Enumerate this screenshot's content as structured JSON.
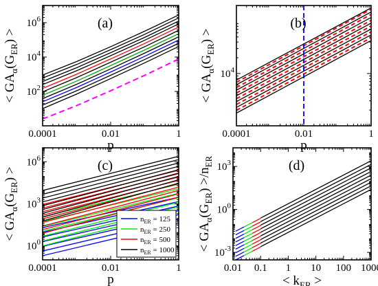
{
  "chart_data": [
    {
      "panel": "a",
      "type": "line",
      "panel_label": "(a)",
      "xlabel": "p",
      "ylabel": "< GA_α(G_ER) >",
      "xscale": "log",
      "yscale": "log",
      "xlim": [
        0.0001,
        1
      ],
      "ylim": [
        1,
        10000000
      ],
      "xticks": [
        {
          "v": 0.0001,
          "label": "0.0001"
        },
        {
          "v": 0.01,
          "label": "0.01"
        },
        {
          "v": 1,
          "label": "1"
        }
      ],
      "yticks": [
        {
          "v": 100,
          "label": "10^2"
        },
        {
          "v": 10000,
          "label": "10^4"
        },
        {
          "v": 1000000,
          "label": "10^6"
        }
      ],
      "series": [
        {
          "color": "#000000",
          "points": [
            [
              0.0001,
              900
            ],
            [
              0.001,
              5500
            ],
            [
              0.01,
              40000
            ],
            [
              0.1,
              320000
            ],
            [
              1,
              2800000
            ]
          ]
        },
        {
          "color": "#000000",
          "points": [
            [
              0.0001,
              600
            ],
            [
              0.001,
              3700
            ],
            [
              0.01,
              27000
            ],
            [
              0.1,
              210000
            ],
            [
              1,
              1900000
            ]
          ]
        },
        {
          "color": "#000000",
          "points": [
            [
              0.0001,
              380
            ],
            [
              0.001,
              2400
            ],
            [
              0.01,
              18000
            ],
            [
              0.1,
              140000
            ],
            [
              1,
              1250000
            ]
          ]
        },
        {
          "color": "#000000",
          "points": [
            [
              0.0001,
              250
            ],
            [
              0.001,
              1600
            ],
            [
              0.01,
              12000
            ],
            [
              0.1,
              95000
            ],
            [
              1,
              850000
            ]
          ]
        },
        {
          "color": "#ff0000",
          "points": [
            [
              0.0001,
              150
            ],
            [
              0.001,
              1000
            ],
            [
              0.01,
              7800
            ],
            [
              0.1,
              62000
            ],
            [
              1,
              560000
            ]
          ]
        },
        {
          "color": "#000000",
          "points": [
            [
              0.0001,
              95
            ],
            [
              0.001,
              640
            ],
            [
              0.01,
              5000
            ],
            [
              0.1,
              40000
            ],
            [
              1,
              360000
            ]
          ]
        },
        {
          "color": "#00aa00",
          "points": [
            [
              0.0001,
              60
            ],
            [
              0.001,
              400
            ],
            [
              0.01,
              3200
            ],
            [
              0.1,
              26000
            ],
            [
              1,
              230000
            ]
          ]
        },
        {
          "color": "#000000",
          "points": [
            [
              0.0001,
              38
            ],
            [
              0.001,
              260
            ],
            [
              0.01,
              2050
            ],
            [
              0.1,
              17000
            ],
            [
              1,
              150000
            ]
          ]
        },
        {
          "color": "#0000ff",
          "points": [
            [
              0.0001,
              25
            ],
            [
              0.001,
              170
            ],
            [
              0.01,
              1350
            ],
            [
              0.1,
              11000
            ],
            [
              1,
              98000
            ]
          ]
        },
        {
          "color": "#000000",
          "points": [
            [
              0.0001,
              16
            ],
            [
              0.001,
              110
            ],
            [
              0.01,
              870
            ],
            [
              0.1,
              7200
            ],
            [
              1,
              64000
            ]
          ]
        },
        {
          "color": "#000000",
          "points": [
            [
              0.0001,
              10
            ],
            [
              0.001,
              70
            ],
            [
              0.01,
              560
            ],
            [
              0.1,
              4600
            ],
            [
              1,
              41000
            ]
          ]
        },
        {
          "color": "#ff00ff",
          "dash": "8,5",
          "points": [
            [
              0.0001,
              2.5
            ],
            [
              0.001,
              15
            ],
            [
              0.01,
              110
            ],
            [
              0.1,
              870
            ],
            [
              1,
              7700
            ]
          ]
        }
      ]
    },
    {
      "panel": "b",
      "type": "line",
      "panel_label": "(b)",
      "xlabel": "p",
      "ylabel": "< GA_α(G_ER) >",
      "xscale": "log",
      "yscale": "log",
      "xlim": [
        0.0001,
        1
      ],
      "ylim": [
        1000,
        200000
      ],
      "xticks": [
        {
          "v": 0.0001,
          "label": "0.0001"
        },
        {
          "v": 0.01,
          "label": "0.01"
        },
        {
          "v": 1,
          "label": "1"
        }
      ],
      "yticks": [
        {
          "v": 10000,
          "label": "10^4"
        }
      ],
      "vline": {
        "x": 0.01,
        "color": "#0000ff",
        "dash": "7,4"
      },
      "series_black_red_overlap": true,
      "series": [
        {
          "color": "#000000",
          "y0": 7500,
          "y1": 180000
        },
        {
          "color": "#ff0000",
          "y0": 6800,
          "y1": 170000
        },
        {
          "color": "#000000",
          "y0": 6100,
          "y1": 150000
        },
        {
          "color": "#ff0000",
          "y0": 5400,
          "y1": 135000
        },
        {
          "color": "#000000",
          "y0": 4800,
          "y1": 118000
        },
        {
          "color": "#ff0000",
          "y0": 4250,
          "y1": 104000
        },
        {
          "color": "#000000",
          "y0": 3750,
          "y1": 92000
        },
        {
          "color": "#ff0000",
          "y0": 3300,
          "y1": 81000
        },
        {
          "color": "#000000",
          "y0": 2900,
          "y1": 71000
        },
        {
          "color": "#ff0000",
          "y0": 2560,
          "y1": 63000
        },
        {
          "color": "#000000",
          "y0": 2250,
          "y1": 55000
        },
        {
          "color": "#ff0000",
          "y0": 1980,
          "y1": 48500
        },
        {
          "color": "#000000",
          "y0": 1750,
          "y1": 42800
        }
      ]
    },
    {
      "panel": "c",
      "type": "line",
      "panel_label": "(c)",
      "xlabel": "p",
      "ylabel": "< GA_α(G_ER) >",
      "xscale": "log",
      "yscale": "log",
      "xlim": [
        0.0001,
        1
      ],
      "ylim": [
        0.1,
        10000000
      ],
      "xticks": [
        {
          "v": 0.0001,
          "label": "0.0001"
        },
        {
          "v": 0.01,
          "label": "0.01"
        },
        {
          "v": 1,
          "label": "1"
        }
      ],
      "yticks": [
        {
          "v": 1,
          "label": "10^0"
        },
        {
          "v": 1000,
          "label": "10^3"
        },
        {
          "v": 1000000,
          "label": "10^6"
        }
      ],
      "legend": [
        {
          "color": "#0000ff",
          "label": "n_ER = 125"
        },
        {
          "color": "#00ee00",
          "label": "n_ER = 250"
        },
        {
          "color": "#ff0000",
          "label": "n_ER = 500"
        },
        {
          "color": "#000000",
          "label": "n_ER = 1000"
        }
      ],
      "legend_position": "lower-right",
      "groups": [
        {
          "color": "#0000ff",
          "y0_min": 0.2,
          "y0_max": 20,
          "y1_min": 40,
          "y1_max": 3000,
          "count": 7
        },
        {
          "color": "#00ee00",
          "y0_min": 1,
          "y0_max": 120,
          "y1_min": 300,
          "y1_max": 25000,
          "count": 7
        },
        {
          "color": "#ff0000",
          "y0_min": 8,
          "y0_max": 900,
          "y1_min": 3000,
          "y1_max": 250000,
          "count": 9
        },
        {
          "color": "#000000",
          "y0_min": 60,
          "y0_max": 9000,
          "y1_min": 30000,
          "y1_max": 2500000,
          "count": 9
        }
      ]
    },
    {
      "panel": "d",
      "type": "line",
      "panel_label": "(d)",
      "xlabel": "< k_ER >",
      "ylabel": "< GA_α(G_ER) >/n_ER",
      "xscale": "log",
      "yscale": "log",
      "xlim": [
        0.01,
        1000
      ],
      "ylim": [
        0.0003,
        20000
      ],
      "xticks": [
        {
          "v": 0.01,
          "label": "0.01"
        },
        {
          "v": 0.1,
          "label": "0.1"
        },
        {
          "v": 1,
          "label": "1"
        },
        {
          "v": 10,
          "label": "10"
        },
        {
          "v": 100,
          "label": "100"
        },
        {
          "v": 1000,
          "label": "1000"
        }
      ],
      "yticks": [
        {
          "v": 0.001,
          "label": "10^-3"
        },
        {
          "v": 1,
          "label": "10^0"
        },
        {
          "v": 1000,
          "label": "10^3"
        }
      ],
      "groups": [
        {
          "color": "#000000",
          "x0": 0.1,
          "x1": 1000,
          "count": 9,
          "y_at_x0_min": 0.0025,
          "y_at_x0_max": 0.25,
          "slope": 1
        },
        {
          "color": "#ff0000",
          "x0": 0.05,
          "x1": 0.1,
          "count": 9,
          "y_at_x0_min": 0.0012,
          "y_at_x0_max": 0.12,
          "slope": 1
        },
        {
          "color": "#00ee00",
          "x0": 0.025,
          "x1": 0.05,
          "count": 9,
          "y_at_x0_min": 0.0006,
          "y_at_x0_max": 0.06,
          "slope": 1
        },
        {
          "color": "#0000ff",
          "x0": 0.0125,
          "x1": 0.025,
          "count": 9,
          "y_at_x0_min": 0.0003,
          "y_at_x0_max": 0.03,
          "slope": 1
        }
      ]
    }
  ]
}
